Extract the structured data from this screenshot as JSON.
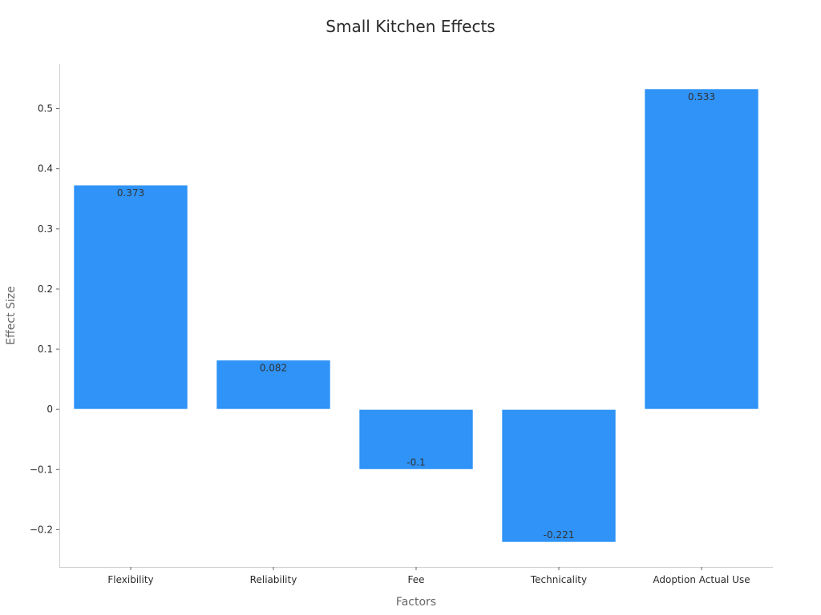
{
  "chart_data": {
    "type": "bar",
    "title": "Small Kitchen Effects",
    "xlabel": "Factors",
    "ylabel": "Effect Size",
    "categories": [
      "Flexibility",
      "Reliability",
      "Fee",
      "Technicality",
      "Adoption Actual Use"
    ],
    "values": [
      0.373,
      0.082,
      -0.1,
      -0.221,
      0.533
    ],
    "value_labels": [
      "0.373",
      "0.082",
      "-0.1",
      "-0.221",
      "0.533"
    ],
    "y_ticks": [
      -0.2,
      -0.1,
      0,
      0.1,
      0.2,
      0.3,
      0.4,
      0.5
    ],
    "y_tick_labels": [
      "−0.2",
      "−0.1",
      "0",
      "0.1",
      "0.2",
      "0.3",
      "0.4",
      "0.5"
    ],
    "ylim": [
      -0.262,
      0.574
    ],
    "grid": false,
    "legend": "none",
    "bar_color": "#2f93f7",
    "bar_edge_color": "#ffffff"
  }
}
